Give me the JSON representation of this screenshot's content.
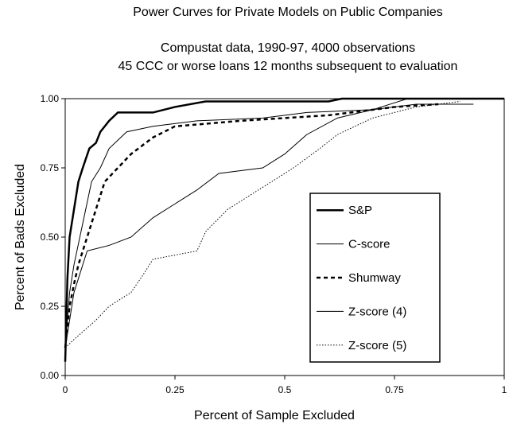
{
  "chart_data": {
    "type": "line",
    "title": "Power Curves for Private Models on Public Companies",
    "subtitle": [
      "Compustat data, 1990-97, 4000 observations",
      "45 CCC or worse loans 12 months subsequent to evaluation"
    ],
    "x_label": "Percent of Sample Excluded",
    "y_label": "Percent of Bads Excluded",
    "xlim": [
      0,
      1
    ],
    "ylim": [
      0,
      1
    ],
    "xticks": [
      0,
      0.25,
      0.5,
      0.75,
      1
    ],
    "yticks": [
      {
        "value": 0,
        "label": "0.00"
      },
      {
        "value": 0.25,
        "label": "0.25"
      },
      {
        "value": 0.5,
        "label": "0.50"
      },
      {
        "value": 0.75,
        "label": "0.75"
      },
      {
        "value": 1,
        "label": "1.00"
      }
    ],
    "legend": "right",
    "series": [
      {
        "name": "S&P",
        "color": "#000000",
        "line_style": "bold",
        "x": [
          0,
          0.005,
          0.01,
          0.02,
          0.03,
          0.04,
          0.055,
          0.07,
          0.08,
          0.1,
          0.12,
          0.2,
          0.25,
          0.32,
          0.6,
          0.63,
          1
        ],
        "values": [
          0.05,
          0.35,
          0.5,
          0.6,
          0.7,
          0.75,
          0.82,
          0.84,
          0.88,
          0.92,
          0.95,
          0.95,
          0.97,
          0.99,
          0.99,
          1,
          1
        ]
      },
      {
        "name": "C-score",
        "color": "#000000",
        "line_style": "solid",
        "x": [
          0,
          0.01,
          0.02,
          0.04,
          0.06,
          0.08,
          0.1,
          0.14,
          0.2,
          0.3,
          0.45,
          0.55,
          0.7,
          0.78,
          0.8,
          1
        ],
        "values": [
          0.1,
          0.3,
          0.4,
          0.55,
          0.7,
          0.75,
          0.82,
          0.88,
          0.9,
          0.92,
          0.93,
          0.95,
          0.96,
          1,
          1,
          1
        ]
      },
      {
        "name": "Shumway",
        "color": "#000000",
        "line_style": "bold-dashed",
        "x": [
          0,
          0.01,
          0.02,
          0.03,
          0.05,
          0.07,
          0.09,
          0.12,
          0.15,
          0.2,
          0.25,
          0.4,
          0.6,
          0.75,
          0.85
        ],
        "values": [
          0.1,
          0.25,
          0.33,
          0.4,
          0.5,
          0.6,
          0.7,
          0.75,
          0.8,
          0.86,
          0.9,
          0.92,
          0.94,
          0.97,
          0.98
        ]
      },
      {
        "name": "Z-score (4)",
        "color": "#000000",
        "line_style": "solid",
        "x": [
          0,
          0.01,
          0.02,
          0.03,
          0.05,
          0.1,
          0.15,
          0.2,
          0.25,
          0.3,
          0.35,
          0.45,
          0.5,
          0.55,
          0.62,
          0.7,
          0.8,
          0.93
        ],
        "values": [
          0.1,
          0.2,
          0.3,
          0.35,
          0.45,
          0.47,
          0.5,
          0.57,
          0.62,
          0.67,
          0.73,
          0.75,
          0.8,
          0.87,
          0.93,
          0.96,
          0.98,
          0.98
        ]
      },
      {
        "name": "Z-score (5)",
        "color": "#000000",
        "line_style": "dotted",
        "x": [
          0,
          0.02,
          0.07,
          0.1,
          0.15,
          0.18,
          0.2,
          0.3,
          0.32,
          0.37,
          0.42,
          0.47,
          0.52,
          0.58,
          0.62,
          0.7,
          0.8,
          0.9
        ],
        "values": [
          0.1,
          0.13,
          0.2,
          0.25,
          0.3,
          0.37,
          0.42,
          0.45,
          0.52,
          0.6,
          0.65,
          0.7,
          0.75,
          0.82,
          0.87,
          0.93,
          0.97,
          0.99
        ]
      }
    ]
  }
}
